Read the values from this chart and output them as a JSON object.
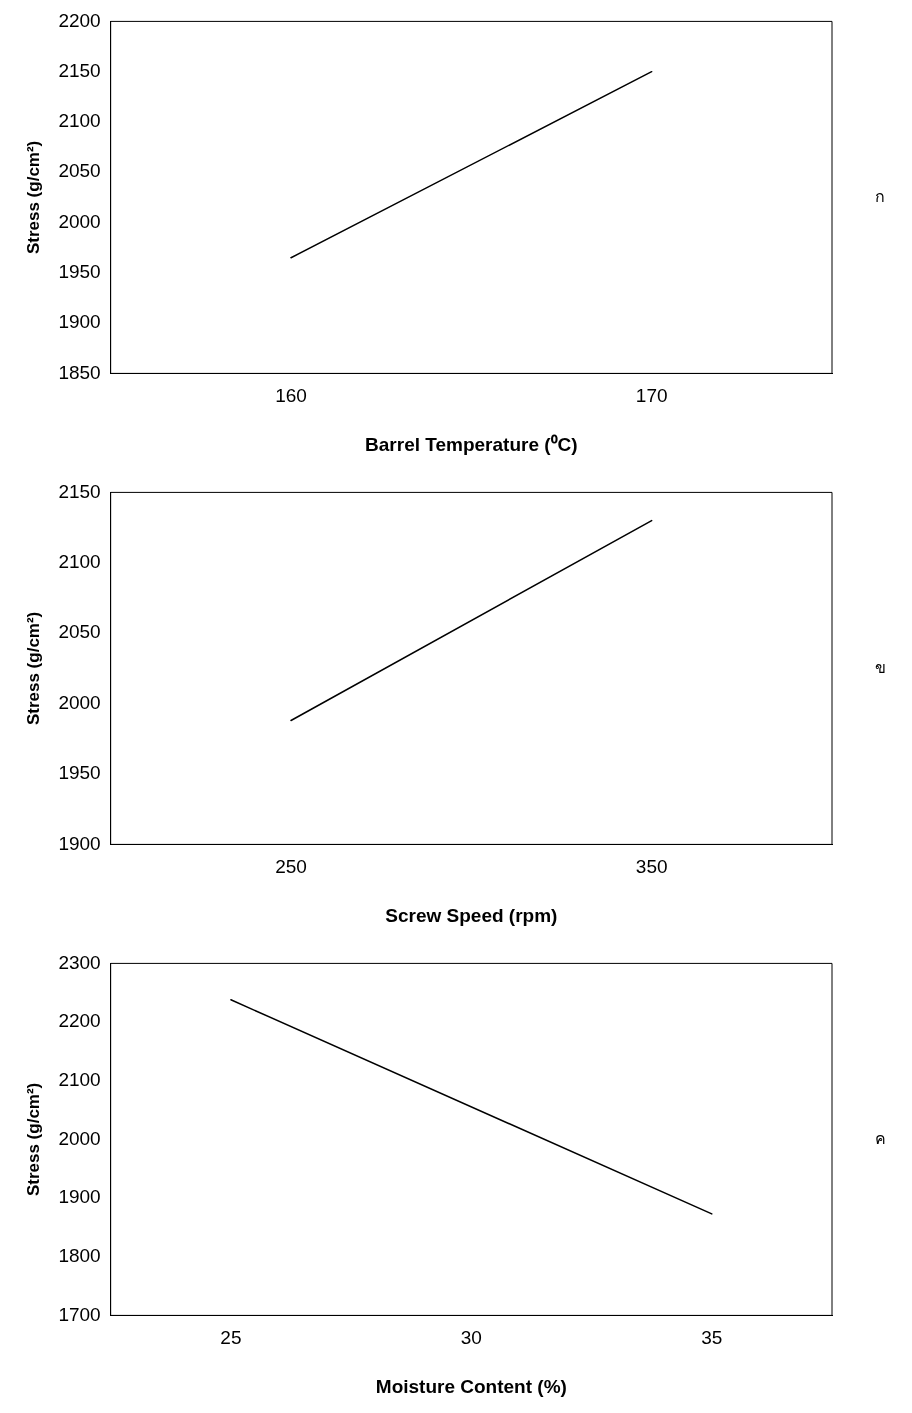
{
  "chart_data": [
    {
      "type": "line",
      "xlabel": "Barrel Temperature (⁰C)",
      "ylabel": "Stress (g/cm²)",
      "x": [
        160,
        170
      ],
      "series": [
        {
          "color": "#000000",
          "values": [
            1965,
            2150
          ]
        }
      ],
      "xlim": [
        155,
        175
      ],
      "xticks": [
        160,
        170
      ],
      "ylim": [
        1850,
        2200
      ],
      "yticks": [
        1850,
        1900,
        1950,
        2000,
        2050,
        2100,
        2150,
        2200
      ],
      "grid": false,
      "legend": false,
      "marker": "none",
      "line_style": "solid",
      "annotations": [
        "ก"
      ]
    },
    {
      "type": "line",
      "xlabel": "Screw Speed (rpm)",
      "ylabel": "Stress (g/cm²)",
      "x": [
        250,
        350
      ],
      "series": [
        {
          "color": "#000000",
          "values": [
            1988,
            2130
          ]
        }
      ],
      "xlim": [
        200,
        400
      ],
      "xticks": [
        250,
        350
      ],
      "ylim": [
        1900,
        2150
      ],
      "yticks": [
        1900,
        1950,
        2000,
        2050,
        2100,
        2150
      ],
      "grid": false,
      "legend": false,
      "marker": "none",
      "line_style": "solid",
      "annotations": [
        "ข"
      ]
    },
    {
      "type": "line",
      "xlabel": "Moisture Content (%)",
      "ylabel": "Stress (g/cm²)",
      "x": [
        25,
        35
      ],
      "series": [
        {
          "color": "#000000",
          "values": [
            2238,
            1873
          ]
        }
      ],
      "xlim": [
        22.5,
        37.5
      ],
      "xticks": [
        25,
        30,
        35
      ],
      "ylim": [
        1700,
        2300
      ],
      "yticks": [
        1700,
        1800,
        1900,
        2000,
        2100,
        2200,
        2300
      ],
      "grid": false,
      "legend": false,
      "marker": "none",
      "line_style": "solid",
      "annotations": [
        "ค"
      ]
    }
  ]
}
